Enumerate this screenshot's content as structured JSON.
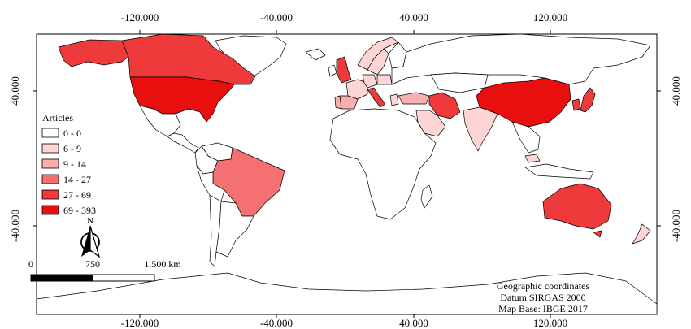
{
  "map": {
    "top_ticks": [
      "-120.000",
      "-40.000",
      "40.000",
      "120.000"
    ],
    "bottom_ticks": [
      "-120.000",
      "-40.000",
      "40.000",
      "120.000"
    ],
    "left_ticks": [
      "40.000",
      "-40.000"
    ],
    "right_ticks": [
      "40.000",
      "-40.000"
    ],
    "legend": {
      "title": "Articles",
      "classes": [
        {
          "label": "0 - 0",
          "color": "#ffffff"
        },
        {
          "label": "6 - 9",
          "color": "#fdd5d5"
        },
        {
          "label": "9 - 14",
          "color": "#fbaeae"
        },
        {
          "label": "14 - 27",
          "color": "#f57070"
        },
        {
          "label": "27 - 69",
          "color": "#ee3a3a"
        },
        {
          "label": "69 - 393",
          "color": "#e80f0f"
        }
      ]
    },
    "north_label": "N",
    "scale_labels": [
      "0",
      "750",
      "1.500 km"
    ],
    "credits": [
      "Geographic coordinates",
      "Datum SIRGAS 2000",
      "Map Base: IBGE 2017"
    ],
    "regions": [
      {
        "name": "Canada",
        "class": 4
      },
      {
        "name": "Alaska",
        "class": 4
      },
      {
        "name": "United States",
        "class": 5
      },
      {
        "name": "Mexico",
        "class": 0
      },
      {
        "name": "Central America",
        "class": 0
      },
      {
        "name": "Greenland",
        "class": 0
      },
      {
        "name": "Brazil",
        "class": 3
      },
      {
        "name": "Argentina",
        "class": 0
      },
      {
        "name": "Chile",
        "class": 0
      },
      {
        "name": "Colombia",
        "class": 0
      },
      {
        "name": "Peru",
        "class": 0
      },
      {
        "name": "Venezuela",
        "class": 0
      },
      {
        "name": "United Kingdom",
        "class": 4
      },
      {
        "name": "Ireland",
        "class": 0
      },
      {
        "name": "Iceland",
        "class": 0
      },
      {
        "name": "Spain",
        "class": 2
      },
      {
        "name": "Portugal",
        "class": 2
      },
      {
        "name": "France",
        "class": 1
      },
      {
        "name": "Germany",
        "class": 1
      },
      {
        "name": "Italy",
        "class": 4
      },
      {
        "name": "Norway",
        "class": 1
      },
      {
        "name": "Sweden",
        "class": 1
      },
      {
        "name": "Finland",
        "class": 0
      },
      {
        "name": "Poland",
        "class": 1
      },
      {
        "name": "Greece",
        "class": 1
      },
      {
        "name": "Turkey",
        "class": 2
      },
      {
        "name": "Russia",
        "class": 0
      },
      {
        "name": "Iran",
        "class": 4
      },
      {
        "name": "Saudi Arabia",
        "class": 1
      },
      {
        "name": "Kazakhstan",
        "class": 0
      },
      {
        "name": "India",
        "class": 1
      },
      {
        "name": "China",
        "class": 5
      },
      {
        "name": "South Korea",
        "class": 4
      },
      {
        "name": "Japan",
        "class": 4
      },
      {
        "name": "Southeast Asia",
        "class": 0
      },
      {
        "name": "Malaysia",
        "class": 1
      },
      {
        "name": "Indonesia",
        "class": 0
      },
      {
        "name": "Australia",
        "class": 4
      },
      {
        "name": "Tasmania",
        "class": 4
      },
      {
        "name": "New Zealand",
        "class": 1
      },
      {
        "name": "Africa",
        "class": 0
      },
      {
        "name": "Madagascar",
        "class": 0
      },
      {
        "name": "Antarctica",
        "class": 0
      }
    ]
  }
}
